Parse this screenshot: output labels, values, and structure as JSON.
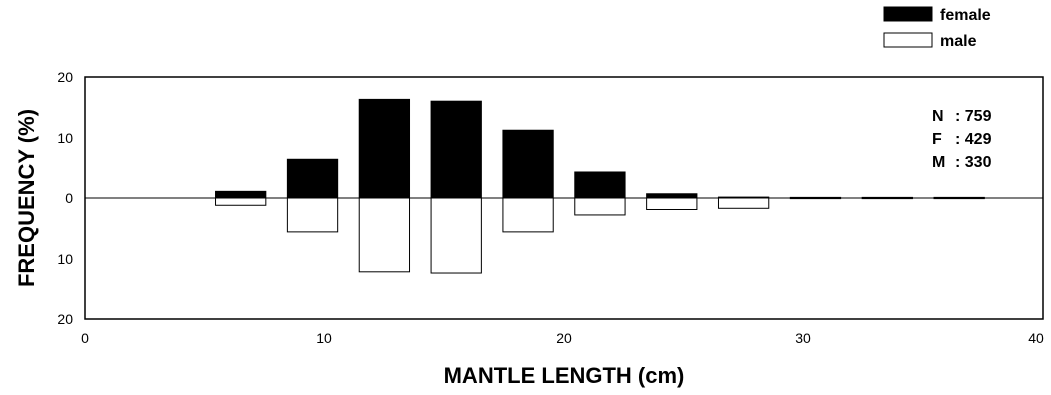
{
  "chart_data": {
    "type": "bar",
    "title": "",
    "xlabel": "MANTLE LENGTH (cm)",
    "ylabel": "FREQUENCY (%)",
    "xlim": [
      0,
      40
    ],
    "ylim": [
      -20,
      20
    ],
    "x_ticks": [
      0,
      10,
      20,
      30,
      40
    ],
    "y_ticks": [
      20,
      10,
      0,
      10,
      20
    ],
    "grid": false,
    "legend_position": "top-right",
    "colors": {
      "female": "#000000",
      "male": "#ffffff",
      "stroke": "#000000"
    },
    "categories": [
      6.5,
      9.5,
      12.5,
      15.5,
      18.5,
      21.5,
      24.5,
      27.5,
      30.5,
      33.5,
      36.5
    ],
    "series": [
      {
        "name": "female",
        "values": [
          1.1,
          6.4,
          16.3,
          16.0,
          11.2,
          4.3,
          0.7,
          0.15,
          0.1,
          0.1,
          0.1
        ]
      },
      {
        "name": "male",
        "values": [
          1.2,
          5.6,
          12.2,
          12.4,
          5.6,
          2.8,
          1.9,
          1.7,
          0.1,
          0.1,
          0.1
        ]
      }
    ],
    "annotations": [
      {
        "label": "N",
        "value": ": 759"
      },
      {
        "label": "F",
        "value": ": 429"
      },
      {
        "label": "M",
        "value": ": 330"
      }
    ]
  }
}
